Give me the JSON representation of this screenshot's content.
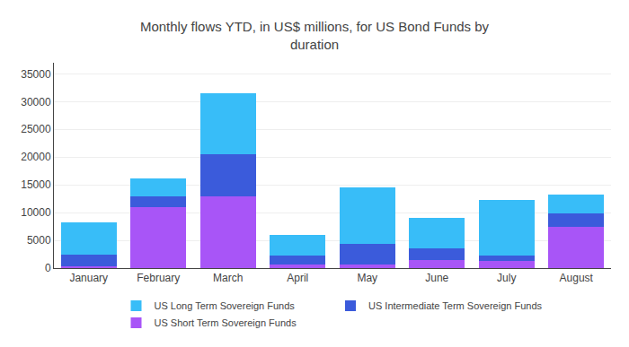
{
  "chart_data": {
    "type": "bar",
    "stacked": true,
    "title": "Monthly flows YTD, in US$ millions, for US Bond Funds by\nduration",
    "categories": [
      "January",
      "February",
      "March",
      "April",
      "May",
      "June",
      "July",
      "August"
    ],
    "series": [
      {
        "name": "US Short Term Sovereign Funds",
        "color": "#a855f7",
        "values": [
          400,
          11000,
          13000,
          600,
          600,
          1500,
          1300,
          7500
        ]
      },
      {
        "name": "US Intermediate Term Sovereign Funds",
        "color": "#3b5bdb",
        "values": [
          2000,
          2000,
          7500,
          1700,
          3800,
          2000,
          900,
          2300
        ]
      },
      {
        "name": "US Long Term Sovereign Funds",
        "color": "#38bdf8",
        "values": [
          5800,
          3200,
          11000,
          3600,
          10200,
          5500,
          10000,
          3500
        ]
      }
    ],
    "ylim": [
      0,
      37000
    ],
    "yticks": [
      0,
      5000,
      10000,
      15000,
      20000,
      25000,
      30000,
      35000
    ],
    "grid": true,
    "legend": "bottom"
  }
}
